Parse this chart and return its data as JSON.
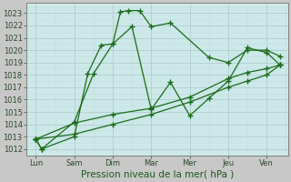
{
  "title": "",
  "xlabel": "Pression niveau de la mer( hPa )",
  "x_labels": [
    "Lun",
    "Sam",
    "Dim",
    "Mar",
    "Mer",
    "Jeu",
    "Ven"
  ],
  "ylim": [
    1011.5,
    1023.8
  ],
  "yticks": [
    1012,
    1013,
    1014,
    1015,
    1016,
    1017,
    1018,
    1019,
    1020,
    1021,
    1022,
    1023
  ],
  "series": [
    {
      "x": [
        0,
        0.15,
        1.0,
        1.35,
        1.7,
        2.0,
        2.2,
        2.4,
        2.7,
        3.0,
        3.5,
        4.5,
        5.0,
        5.5,
        6.0,
        6.35
      ],
      "y": [
        1012.8,
        1012.0,
        1013.0,
        1018.1,
        1020.4,
        1020.5,
        1023.1,
        1023.2,
        1023.2,
        1021.9,
        1022.2,
        1019.4,
        1019.0,
        1020.0,
        1020.0,
        1019.5
      ]
    },
    {
      "x": [
        0,
        0.15,
        1.0,
        1.5,
        2.0,
        2.5,
        3.0,
        3.5,
        4.0,
        4.5,
        5.0,
        5.5,
        6.0,
        6.35
      ],
      "y": [
        1012.8,
        1012.0,
        1014.2,
        1018.1,
        1020.5,
        1021.9,
        1015.2,
        1017.4,
        1014.7,
        1016.1,
        1017.5,
        1020.2,
        1019.8,
        1018.8
      ]
    },
    {
      "x": [
        0,
        1.0,
        2.0,
        3.0,
        4.0,
        5.0,
        5.5,
        6.0,
        6.35
      ],
      "y": [
        1012.8,
        1014.1,
        1014.8,
        1015.3,
        1016.2,
        1017.7,
        1018.2,
        1018.5,
        1018.8
      ]
    },
    {
      "x": [
        0,
        1.0,
        2.0,
        3.0,
        4.0,
        5.0,
        5.5,
        6.0,
        6.35
      ],
      "y": [
        1012.8,
        1013.2,
        1014.0,
        1014.8,
        1015.8,
        1017.0,
        1017.5,
        1018.0,
        1018.8
      ]
    }
  ],
  "line_color": "#1a6b1a",
  "marker": "+",
  "markersize": 4,
  "markeredgewidth": 1.0,
  "linewidth": 0.9,
  "bg_color": "#cce8e8",
  "grid_major_color": "#b0cccc",
  "grid_minor_color": "#c4dede",
  "tick_fontsize": 6,
  "xlabel_fontsize": 7.5,
  "fig_bg": "#c8c8c8"
}
